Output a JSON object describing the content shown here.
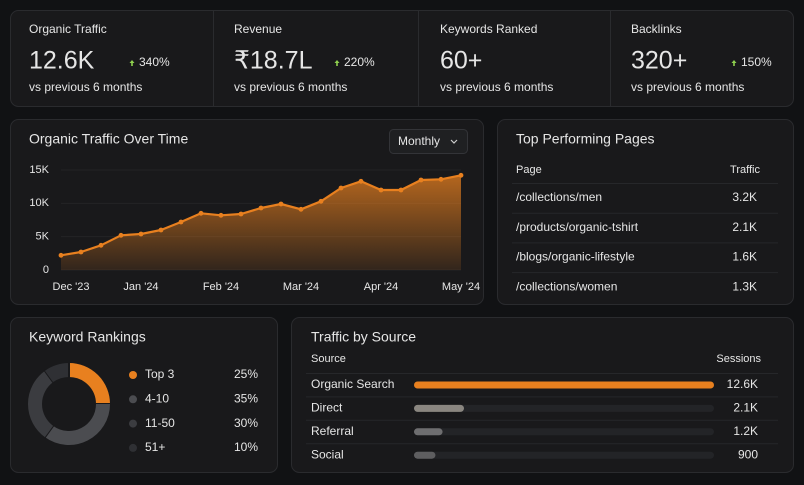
{
  "kpis": [
    {
      "label": "Organic Traffic",
      "value": "12.6K",
      "change": "340%",
      "note": "vs previous 6 months"
    },
    {
      "label": "Revenue",
      "value": "₹18.7L",
      "change": "220%",
      "note": "vs previous 6 months"
    },
    {
      "label": "Keywords Ranked",
      "value": "60+",
      "change": null,
      "note": "vs previous 6 months"
    },
    {
      "label": "Backlinks",
      "value": "320+",
      "change": "150%",
      "note": "vs previous 6 months"
    }
  ],
  "period_select": "Monthly",
  "chart_data": [
    {
      "type": "area",
      "title": "Organic Traffic Over Time",
      "color": "#e8801f",
      "categories": [
        "Dec '23",
        null,
        null,
        null,
        "Jan '24",
        null,
        null,
        null,
        "Feb '24",
        null,
        null,
        null,
        "Mar '24",
        null,
        null,
        null,
        "Apr '24",
        null,
        null,
        null,
        "May '24"
      ],
      "values": [
        2200,
        2700,
        3700,
        5200,
        5400,
        6000,
        7200,
        8500,
        8200,
        8400,
        9300,
        9900,
        9100,
        10300,
        12300,
        13300,
        12000,
        12000,
        13500,
        13600,
        14200
      ],
      "ylim": [
        0,
        15000
      ],
      "yticks": [
        0,
        {
          "value": 5000,
          "label": "5K"
        },
        {
          "value": 10000,
          "label": "10K"
        },
        {
          "value": 15000,
          "label": "15K"
        }
      ],
      "grid": true
    },
    {
      "type": "donut",
      "title": "Keyword Rankings",
      "categories": [
        "Top 3",
        "4-10",
        "11-50",
        "51+"
      ],
      "values": [
        25,
        35,
        30,
        10
      ],
      "value_labels": [
        "25%",
        "35%",
        "30%",
        "10%"
      ],
      "colors": [
        "#e8801f",
        "#4b4c50",
        "#3b3c40",
        "#2f3034"
      ]
    },
    {
      "type": "hbar",
      "title": "Traffic by Source",
      "category_header": "Source",
      "value_header": "Sessions",
      "categories": [
        "Organic Search",
        "Direct",
        "Referral",
        "Social"
      ],
      "values": [
        12600,
        2100,
        1200,
        900
      ],
      "value_labels": [
        "12.6K",
        "2.1K",
        "1.2K",
        "900"
      ],
      "colors": [
        "#e8801f",
        "#8a8680",
        "#6e6e70",
        "#5e5e60"
      ]
    }
  ],
  "top_pages": {
    "title": "Top Performing Pages",
    "header": [
      "Page",
      "Traffic"
    ],
    "rows": [
      [
        "/collections/men",
        "3.2K"
      ],
      [
        "/products/organic-tshirt",
        "2.1K"
      ],
      [
        "/blogs/organic-lifestyle",
        "1.6K"
      ],
      [
        "/collections/women",
        "1.3K"
      ]
    ]
  }
}
